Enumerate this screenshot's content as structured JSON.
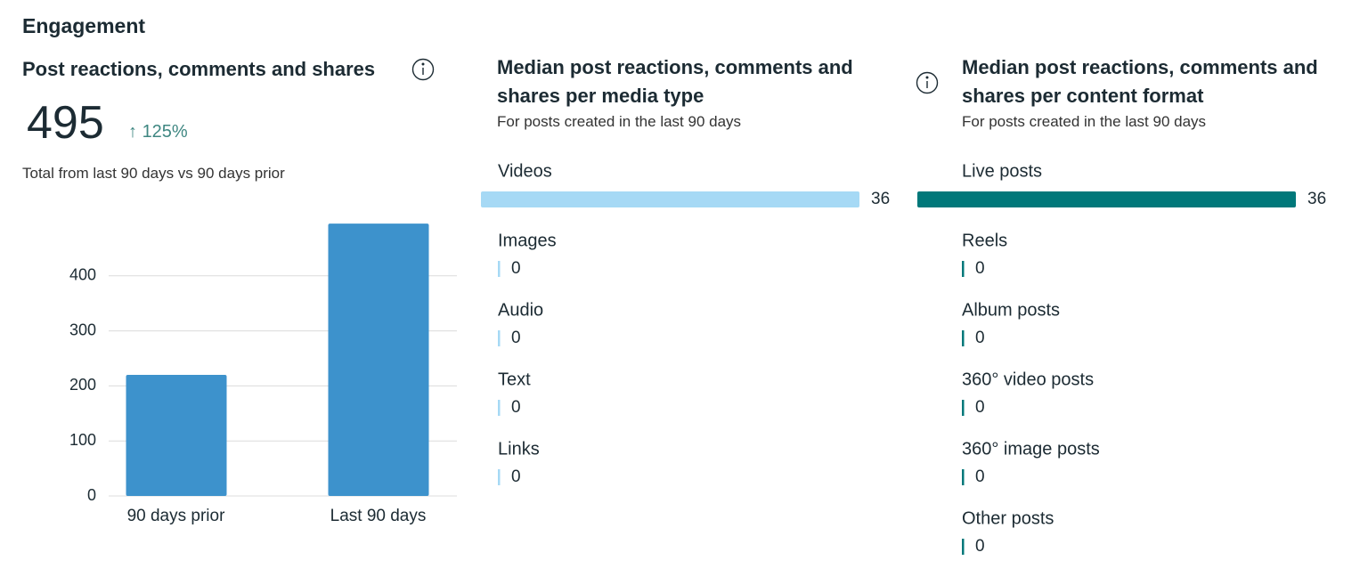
{
  "header": "Engagement",
  "summary": {
    "total": 495,
    "change": "125%",
    "note": "Total from last 90 days vs 90 days prior"
  },
  "chart_data": [
    {
      "type": "bar",
      "title": "Post reactions, comments and shares",
      "categories": [
        "90 days prior",
        "Last 90 days"
      ],
      "values": [
        220,
        495
      ],
      "color": "#3d92cc",
      "ylim": [
        0,
        500
      ],
      "yticks": [
        0,
        100,
        200,
        300,
        400
      ],
      "grid": true
    },
    {
      "type": "hbar",
      "title": "Median post reactions, comments and shares per media type",
      "subtitle": "For posts created in the last 90 days",
      "categories": [
        "Videos",
        "Images",
        "Audio",
        "Text",
        "Links"
      ],
      "values": [
        36,
        0,
        0,
        0,
        0
      ],
      "color": "#a6d9f5"
    },
    {
      "type": "hbar",
      "title": "Median post reactions, comments and shares per content format",
      "subtitle": "For posts created in the last 90 days",
      "categories": [
        "Live posts",
        "Reels",
        "Album posts",
        "360° video posts",
        "360° image posts",
        "Other posts"
      ],
      "values": [
        36,
        0,
        0,
        0,
        0,
        0
      ],
      "color": "#00787a"
    }
  ]
}
